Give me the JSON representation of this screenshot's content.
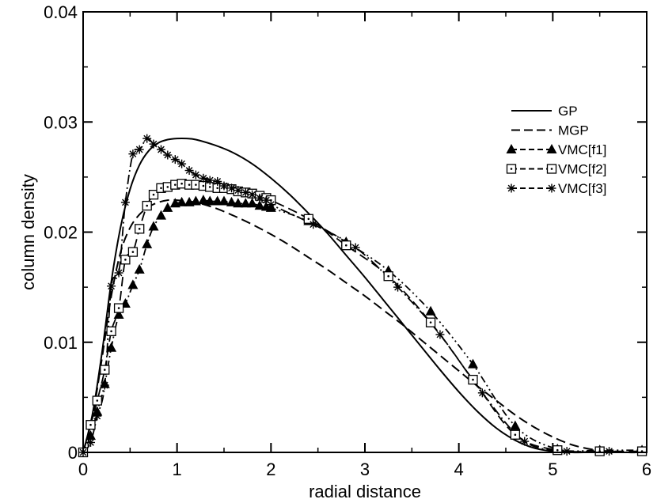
{
  "chart_data": {
    "type": "line",
    "title": "",
    "xlabel": "radial distance",
    "ylabel": "column density",
    "xlim": [
      0,
      6
    ],
    "ylim": [
      0,
      0.04
    ],
    "xticks": [
      "0",
      "1",
      "2",
      "3",
      "4",
      "5",
      "6"
    ],
    "yticks": [
      "0",
      "0.01",
      "0.02",
      "0.03",
      "0.04"
    ],
    "grid": false,
    "legend_position": "top-right",
    "series": [
      {
        "name": "GP",
        "style": "solid",
        "marker": "none",
        "x": [
          0,
          0.1,
          0.2,
          0.3,
          0.4,
          0.5,
          0.6,
          0.7,
          0.8,
          0.9,
          1.0,
          1.1,
          1.2,
          1.4,
          1.6,
          1.8,
          2.0,
          2.2,
          2.4,
          2.6,
          2.8,
          3.0,
          3.2,
          3.4,
          3.6,
          3.8,
          4.0,
          4.2,
          4.4,
          4.6,
          4.8,
          5.0,
          5.2,
          5.4,
          5.6,
          6.0
        ],
        "y": [
          0,
          0.0035,
          0.009,
          0.0155,
          0.0205,
          0.0239,
          0.0261,
          0.0274,
          0.0281,
          0.0284,
          0.0285,
          0.0285,
          0.0284,
          0.0279,
          0.0272,
          0.0262,
          0.0249,
          0.0234,
          0.0217,
          0.0199,
          0.0179,
          0.0159,
          0.0138,
          0.0117,
          0.0096,
          0.0075,
          0.0055,
          0.0037,
          0.0022,
          0.0011,
          0.0004,
          0.0001,
          0,
          0,
          0,
          0
        ]
      },
      {
        "name": "MGP",
        "style": "dashed",
        "marker": "none",
        "x": [
          0,
          0.1,
          0.2,
          0.3,
          0.4,
          0.5,
          0.6,
          0.7,
          0.8,
          0.9,
          1.0,
          1.2,
          1.4,
          1.6,
          1.8,
          2.0,
          2.2,
          2.4,
          2.6,
          2.8,
          3.0,
          3.2,
          3.4,
          3.6,
          3.8,
          4.0,
          4.2,
          4.4,
          4.6,
          4.8,
          5.0,
          5.2,
          5.4,
          5.6,
          5.8,
          6.0
        ],
        "y": [
          0,
          0.0033,
          0.0085,
          0.0142,
          0.0182,
          0.0204,
          0.0216,
          0.0223,
          0.0227,
          0.0229,
          0.0229,
          0.0227,
          0.0222,
          0.0215,
          0.0207,
          0.0198,
          0.0188,
          0.0177,
          0.0166,
          0.0154,
          0.0142,
          0.0129,
          0.0116,
          0.0102,
          0.0088,
          0.0074,
          0.006,
          0.0047,
          0.0034,
          0.0023,
          0.0014,
          0.0007,
          0.0003,
          0.0001,
          0,
          0
        ]
      },
      {
        "name": "VMC[f1]",
        "style": "dash-dot-dot",
        "marker": "filled-triangle",
        "x": [
          0,
          0.08,
          0.15,
          0.23,
          0.3,
          0.38,
          0.45,
          0.53,
          0.6,
          0.68,
          0.75,
          0.83,
          0.9,
          0.98,
          1.05,
          1.13,
          1.2,
          1.28,
          1.35,
          1.43,
          1.5,
          1.58,
          1.65,
          1.73,
          1.8,
          1.88,
          1.95,
          2.0,
          2.4,
          2.8,
          3.25,
          3.7,
          4.15,
          4.6,
          5.05,
          5.5,
          5.95
        ],
        "y": [
          0,
          0.0015,
          0.0037,
          0.0062,
          0.0095,
          0.0125,
          0.0135,
          0.0152,
          0.0166,
          0.0189,
          0.0205,
          0.0215,
          0.0222,
          0.0226,
          0.0227,
          0.0227,
          0.0228,
          0.0229,
          0.0228,
          0.0228,
          0.0228,
          0.0227,
          0.0226,
          0.0226,
          0.0226,
          0.0224,
          0.0223,
          0.0222,
          0.021,
          0.0191,
          0.0165,
          0.0128,
          0.008,
          0.0024,
          0.0003,
          0.0002,
          0.0002
        ]
      },
      {
        "name": "VMC[f2]",
        "style": "dashed",
        "marker": "open-square-dot",
        "x": [
          0,
          0.08,
          0.15,
          0.23,
          0.3,
          0.38,
          0.45,
          0.53,
          0.6,
          0.68,
          0.75,
          0.83,
          0.9,
          0.98,
          1.05,
          1.13,
          1.2,
          1.28,
          1.35,
          1.43,
          1.5,
          1.58,
          1.65,
          1.73,
          1.8,
          1.88,
          1.95,
          2.0,
          2.4,
          2.8,
          3.25,
          3.7,
          4.15,
          4.6,
          5.05,
          5.5,
          5.95
        ],
        "y": [
          0,
          0.0025,
          0.0047,
          0.0075,
          0.011,
          0.0131,
          0.0175,
          0.0182,
          0.0203,
          0.0224,
          0.0234,
          0.024,
          0.0241,
          0.0243,
          0.0244,
          0.0243,
          0.0243,
          0.0242,
          0.0241,
          0.024,
          0.024,
          0.0239,
          0.0237,
          0.0236,
          0.0235,
          0.0233,
          0.0231,
          0.0229,
          0.0212,
          0.0188,
          0.016,
          0.0118,
          0.0066,
          0.0016,
          0.0002,
          0.0001,
          0.0001
        ]
      },
      {
        "name": "VMC[f3]",
        "style": "dash-dot",
        "marker": "star",
        "x": [
          0,
          0.08,
          0.15,
          0.23,
          0.3,
          0.38,
          0.45,
          0.53,
          0.6,
          0.68,
          0.75,
          0.83,
          0.9,
          0.98,
          1.05,
          1.13,
          1.2,
          1.28,
          1.35,
          1.43,
          1.5,
          1.58,
          1.65,
          1.73,
          1.8,
          1.88,
          1.95,
          2.0,
          2.45,
          2.9,
          3.35,
          3.8,
          4.25,
          4.7,
          5.15,
          5.6
        ],
        "y": [
          0,
          0.0009,
          0.0033,
          0.0061,
          0.0151,
          0.0163,
          0.0227,
          0.0271,
          0.0275,
          0.0285,
          0.028,
          0.0275,
          0.027,
          0.0266,
          0.0262,
          0.0256,
          0.0252,
          0.0249,
          0.0247,
          0.0246,
          0.0242,
          0.024,
          0.0238,
          0.0236,
          0.0234,
          0.0231,
          0.0229,
          0.0225,
          0.0207,
          0.0186,
          0.015,
          0.0107,
          0.0054,
          0.001,
          0.0001,
          0.0001
        ]
      }
    ]
  }
}
